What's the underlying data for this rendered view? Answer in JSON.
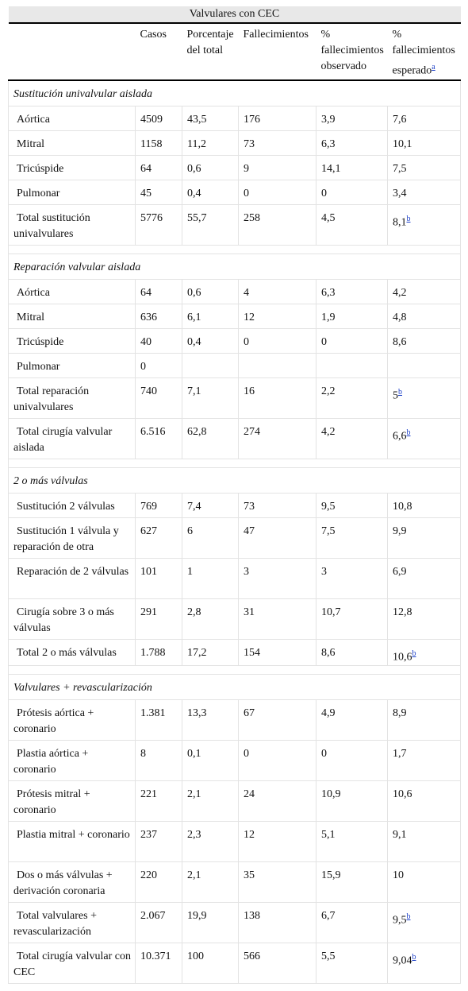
{
  "table": {
    "title": "Valvulares con CEC",
    "columns": [
      "Casos",
      "Porcentaje del total",
      "Fallecimientos",
      "% fallecimientos observado",
      {
        "text": "% fallecimientos esperado",
        "note": "a"
      }
    ],
    "sections": [
      {
        "title": "Sustitución univalvular aislada",
        "rows": [
          [
            "Aórtica",
            "4509",
            "43,5",
            "176",
            "3,9",
            "7,6"
          ],
          [
            "Mitral",
            "1158",
            "11,2",
            "73",
            "6,3",
            "10,1"
          ],
          [
            "Tricúspide",
            "64",
            "0,6",
            "9",
            "14,1",
            "7,5"
          ],
          [
            "Pulmonar",
            "45",
            "0,4",
            "0",
            "0",
            "3,4"
          ],
          [
            "Total sustitución univalvulares",
            "5776",
            "55,7",
            "258",
            "4,5",
            {
              "text": "8,1",
              "note": "b"
            }
          ]
        ]
      },
      {
        "title": "Reparación valvular aislada",
        "rows": [
          [
            "Aórtica",
            "64",
            "0,6",
            "4",
            "6,3",
            "4,2"
          ],
          [
            "Mitral",
            "636",
            "6,1",
            "12",
            "1,9",
            "4,8"
          ],
          [
            "Tricúspide",
            "40",
            "0,4",
            "0",
            "0",
            "8,6"
          ],
          [
            "Pulmonar",
            "0"
          ],
          [
            "Total reparación univalvulares",
            "740",
            "7,1",
            "16",
            "2,2",
            {
              "text": "5",
              "note": "b"
            }
          ],
          [
            "Total cirugía valvular aislada",
            "6.516",
            "62,8",
            "274",
            "4,2",
            {
              "text": "6,6",
              "note": "b"
            }
          ]
        ]
      },
      {
        "title": "2 o más válvulas",
        "rows": [
          [
            "Sustitución 2 válvulas",
            "769",
            "7,4",
            "73",
            "9,5",
            "10,8"
          ],
          [
            "Sustitución 1 válvula y reparación de otra",
            "627",
            "6",
            "47",
            "7,5",
            "9,9"
          ],
          [
            "Reparación de 2 válvulas",
            "101",
            "1",
            "3",
            "3",
            "6,9"
          ],
          [
            "Cirugía sobre 3 o más válvulas",
            "291",
            "2,8",
            "31",
            "10,7",
            "12,8"
          ],
          [
            "Total 2 o más válvulas",
            "1.788",
            "17,2",
            "154",
            "8,6",
            {
              "text": "10,6",
              "note": "b"
            }
          ]
        ]
      },
      {
        "title": "Valvulares + revascularización",
        "rows": [
          [
            "Prótesis aórtica + coronario",
            "1.381",
            "13,3",
            "67",
            "4,9",
            "8,9"
          ],
          [
            "Plastia aórtica + coronario",
            "8",
            "0,1",
            "0",
            "0",
            "1,7"
          ],
          [
            "Prótesis mitral + coronario",
            "221",
            "2,1",
            "24",
            "10,9",
            "10,6"
          ],
          [
            "Plastia mitral + coronario",
            "237",
            "2,3",
            "12",
            "5,1",
            "9,1"
          ],
          [
            "Dos o más válvulas + derivación coronaria",
            "220",
            "2,1",
            "35",
            "15,9",
            "10"
          ],
          [
            "Total valvulares + revascularización",
            "2.067",
            "19,9",
            "138",
            "6,7",
            {
              "text": "9,5",
              "note": "b"
            }
          ],
          [
            "Total cirugía valvular con CEC",
            "10.371",
            "100",
            "566",
            "5,5",
            {
              "text": "9,04",
              "note": "b"
            }
          ]
        ]
      }
    ]
  }
}
